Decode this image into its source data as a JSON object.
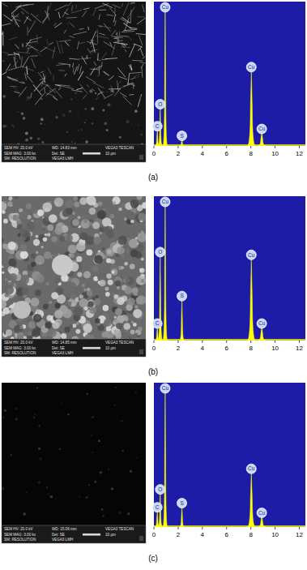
{
  "chart_data": [
    {
      "type": "spectrum",
      "categories": [
        "C",
        "O",
        "Cu",
        "S",
        "Cu",
        "Cu"
      ],
      "x": [
        0.28,
        0.52,
        0.93,
        2.31,
        8.04,
        8.9
      ],
      "values": [
        12,
        28,
        100,
        5,
        55,
        10
      ],
      "xlim": [
        0,
        12.5
      ],
      "xticks": [
        0,
        2,
        4,
        6,
        8,
        10,
        12
      ],
      "ylim": [
        0,
        105
      ],
      "tick_labels": "x",
      "color": "#ffff00"
    },
    {
      "type": "spectrum",
      "categories": [
        "C",
        "O",
        "Cu",
        "S",
        "Cu",
        "Cu"
      ],
      "x": [
        0.28,
        0.52,
        0.93,
        2.31,
        8.04,
        8.9
      ],
      "values": [
        10,
        62,
        100,
        30,
        60,
        10
      ],
      "xlim": [
        0,
        12.5
      ],
      "xticks": [
        0,
        2,
        4,
        6,
        8,
        10,
        12
      ],
      "ylim": [
        0,
        105
      ],
      "tick_labels": "x",
      "color": "#ffff00"
    },
    {
      "type": "spectrum",
      "categories": [
        "C",
        "O",
        "Cu",
        "S",
        "Cu",
        "Cu"
      ],
      "x": [
        0.28,
        0.52,
        0.93,
        2.31,
        8.04,
        8.9
      ],
      "values": [
        12,
        25,
        100,
        15,
        40,
        8
      ],
      "xlim": [
        0,
        12.5
      ],
      "xticks": [
        0,
        2,
        4,
        6,
        8,
        10,
        12
      ],
      "ylim": [
        0,
        105
      ],
      "tick_labels": "x",
      "color": "#ffff00"
    }
  ],
  "panels": [
    {
      "label": "(a)",
      "info": [
        "SEM HV: 20.0 kV",
        "WD: 14.83 mm",
        "VEGA3 TESCAN",
        "SEM MAG: 3.00 kx",
        "Det: SE",
        "10 μm",
        "SM: RESOLUTION",
        "VEGA3 LMH"
      ]
    },
    {
      "label": "(b)",
      "info": [
        "SEM HV: 20.0 kV",
        "WD: 14.85 mm",
        "VEGA3 TESCAN",
        "SEM MAG: 3.00 kx",
        "Det: SE",
        "10 μm",
        "SM: RESOLUTION",
        "VEGA3 LMH"
      ]
    },
    {
      "label": "(c)",
      "info": [
        "SEM HV: 20.0 kV",
        "WD: 15.06 mm",
        "VEGA3 TESCAN",
        "SEM MAG: 3.00 kx",
        "Det: SE",
        "10 μm",
        "SM: RESOLUTION",
        "VEGA3 LMH"
      ]
    }
  ]
}
